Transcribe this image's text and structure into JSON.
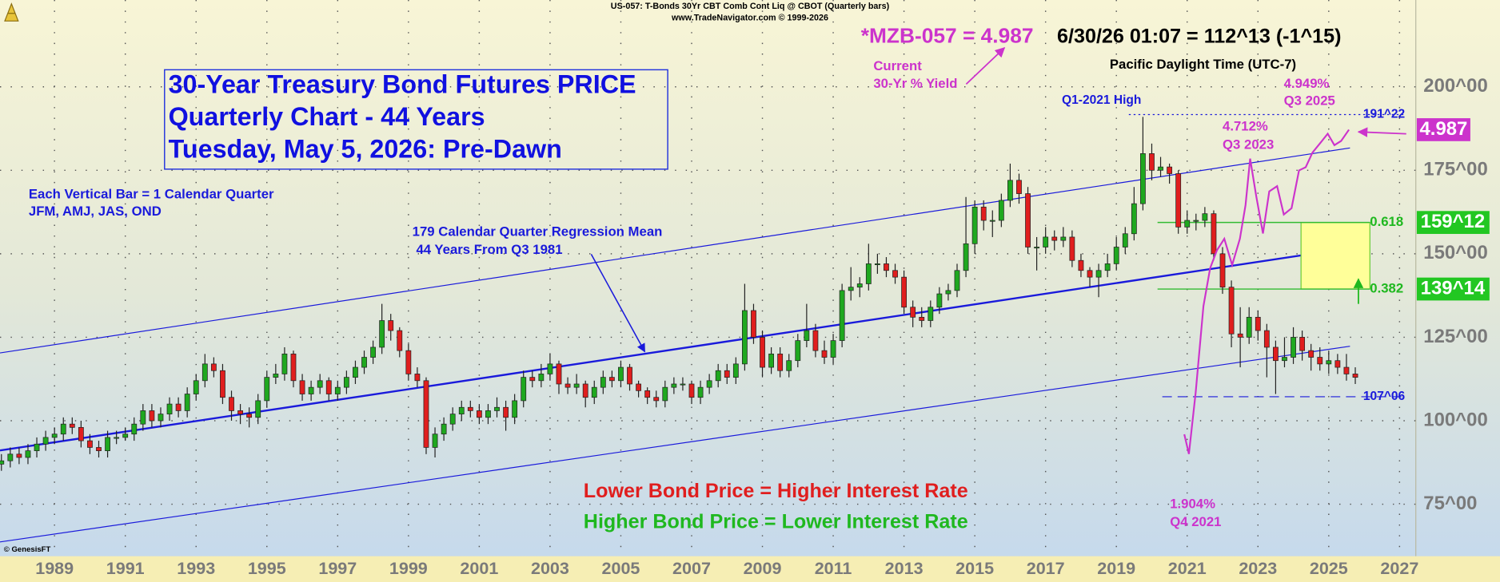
{
  "chart_data": {
    "type": "candlestick",
    "header": [
      "US-057:  T-Bonds 30Yr CBT Comb Cont Liq @ CBOT  (Quarterly bars)",
      "www.TradeNavigator.com © 1999-2026"
    ],
    "quote": [
      "*MZB-057 = 4.987",
      "6/30/26 01:07 = 112^13 (-1^15)"
    ],
    "title": [
      "30-Year Treasury Bond Futures PRICE",
      "Quarterly Chart - 44 Years",
      "Tuesday, May 5, 2026: Pre-Dawn"
    ],
    "x": [
      1987.5,
      1987.75,
      1988,
      1988.25,
      1988.5,
      1988.75,
      1989,
      1989.25,
      1989.5,
      1989.75,
      1990,
      1990.25,
      1990.5,
      1990.75,
      1991,
      1991.25,
      1991.5,
      1991.75,
      1992,
      1992.25,
      1992.5,
      1992.75,
      1993,
      1993.25,
      1993.5,
      1993.75,
      1994,
      1994.25,
      1994.5,
      1994.75,
      1995,
      1995.25,
      1995.5,
      1995.75,
      1996,
      1996.25,
      1996.5,
      1996.75,
      1997,
      1997.25,
      1997.5,
      1997.75,
      1998,
      1998.25,
      1998.5,
      1998.75,
      1999,
      1999.25,
      1999.5,
      1999.75,
      2000,
      2000.25,
      2000.5,
      2000.75,
      2001,
      2001.25,
      2001.5,
      2001.75,
      2002,
      2002.25,
      2002.5,
      2002.75,
      2003,
      2003.25,
      2003.5,
      2003.75,
      2004,
      2004.25,
      2004.5,
      2004.75,
      2005,
      2005.25,
      2005.5,
      2005.75,
      2006,
      2006.25,
      2006.5,
      2006.75,
      2007,
      2007.25,
      2007.5,
      2007.75,
      2008,
      2008.25,
      2008.5,
      2008.75,
      2009,
      2009.25,
      2009.5,
      2009.75,
      2010,
      2010.25,
      2010.5,
      2010.75,
      2011,
      2011.25,
      2011.5,
      2011.75,
      2012,
      2012.25,
      2012.5,
      2012.75,
      2013,
      2013.25,
      2013.5,
      2013.75,
      2014,
      2014.25,
      2014.5,
      2014.75,
      2015,
      2015.25,
      2015.5,
      2015.75,
      2016,
      2016.25,
      2016.5,
      2016.75,
      2017,
      2017.25,
      2017.5,
      2017.75,
      2018,
      2018.25,
      2018.5,
      2018.75,
      2019,
      2019.25,
      2019.5,
      2019.75,
      2020,
      2020.25,
      2020.5,
      2020.75,
      2021,
      2021.25,
      2021.5,
      2021.75,
      2022,
      2022.25,
      2022.5,
      2022.75,
      2023,
      2023.25,
      2023.5,
      2023.75,
      2024,
      2024.25,
      2024.5,
      2024.75,
      2025,
      2025.25,
      2025.5,
      2025.75
    ],
    "ohlc": [
      [
        87,
        90,
        85,
        88
      ],
      [
        88,
        92,
        86,
        90
      ],
      [
        90,
        92,
        87,
        89
      ],
      [
        89,
        93,
        87,
        91
      ],
      [
        91,
        95,
        89,
        93
      ],
      [
        93,
        97,
        91,
        95
      ],
      [
        95,
        98,
        93,
        96
      ],
      [
        96,
        101,
        94,
        99
      ],
      [
        99,
        101,
        96,
        98
      ],
      [
        98,
        100,
        92,
        94
      ],
      [
        94,
        96,
        90,
        92
      ],
      [
        92,
        94,
        89,
        91
      ],
      [
        91,
        97,
        89,
        95
      ],
      [
        95,
        97,
        93,
        95
      ],
      [
        95,
        98,
        94,
        96
      ],
      [
        96,
        101,
        94,
        99
      ],
      [
        99,
        105,
        97,
        103
      ],
      [
        103,
        105,
        98,
        100
      ],
      [
        100,
        104,
        98,
        102
      ],
      [
        102,
        107,
        100,
        105
      ],
      [
        105,
        107,
        101,
        103
      ],
      [
        103,
        110,
        101,
        108
      ],
      [
        108,
        114,
        106,
        112
      ],
      [
        112,
        120,
        110,
        117
      ],
      [
        117,
        119,
        113,
        115
      ],
      [
        115,
        117,
        105,
        107
      ],
      [
        107,
        109,
        100,
        103
      ],
      [
        103,
        105,
        99,
        102
      ],
      [
        102,
        104,
        98,
        101
      ],
      [
        101,
        108,
        99,
        106
      ],
      [
        106,
        115,
        104,
        113
      ],
      [
        113,
        117,
        111,
        114
      ],
      [
        114,
        122,
        112,
        120
      ],
      [
        120,
        121,
        110,
        112
      ],
      [
        112,
        114,
        106,
        108
      ],
      [
        108,
        112,
        106,
        110
      ],
      [
        110,
        114,
        108,
        112
      ],
      [
        112,
        113,
        106,
        108
      ],
      [
        108,
        112,
        106,
        110
      ],
      [
        110,
        115,
        108,
        113
      ],
      [
        113,
        118,
        111,
        116
      ],
      [
        116,
        121,
        114,
        119
      ],
      [
        119,
        124,
        117,
        122
      ],
      [
        122,
        135,
        120,
        130
      ],
      [
        130,
        132,
        124,
        127
      ],
      [
        127,
        128,
        119,
        121
      ],
      [
        121,
        123,
        112,
        114
      ],
      [
        114,
        116,
        110,
        112
      ],
      [
        112,
        113,
        90,
        92
      ],
      [
        92,
        98,
        89,
        96
      ],
      [
        96,
        101,
        94,
        99
      ],
      [
        99,
        104,
        97,
        102
      ],
      [
        102,
        106,
        100,
        104
      ],
      [
        104,
        106,
        101,
        103
      ],
      [
        103,
        105,
        99,
        101
      ],
      [
        101,
        105,
        99,
        103
      ],
      [
        103,
        107,
        101,
        104
      ],
      [
        104,
        106,
        97,
        101
      ],
      [
        101,
        108,
        99,
        106
      ],
      [
        106,
        115,
        104,
        113
      ],
      [
        113,
        115,
        110,
        112
      ],
      [
        112,
        117,
        110,
        114
      ],
      [
        114,
        120,
        112,
        117
      ],
      [
        117,
        118,
        108,
        111
      ],
      [
        111,
        113,
        108,
        110
      ],
      [
        110,
        114,
        108,
        111
      ],
      [
        111,
        112,
        104,
        107
      ],
      [
        107,
        112,
        105,
        110
      ],
      [
        110,
        115,
        108,
        113
      ],
      [
        113,
        115,
        110,
        112
      ],
      [
        112,
        118,
        110,
        116
      ],
      [
        116,
        117,
        109,
        111
      ],
      [
        111,
        112,
        107,
        109
      ],
      [
        109,
        110,
        105,
        107
      ],
      [
        107,
        109,
        104,
        106
      ],
      [
        106,
        112,
        104,
        110
      ],
      [
        110,
        113,
        108,
        111
      ],
      [
        111,
        113,
        109,
        111
      ],
      [
        111,
        112,
        105,
        107
      ],
      [
        107,
        112,
        105,
        110
      ],
      [
        110,
        114,
        108,
        112
      ],
      [
        112,
        117,
        110,
        115
      ],
      [
        115,
        117,
        111,
        113
      ],
      [
        113,
        119,
        111,
        117
      ],
      [
        117,
        141,
        115,
        133
      ],
      [
        133,
        135,
        123,
        125
      ],
      [
        125,
        127,
        113,
        116
      ],
      [
        116,
        122,
        114,
        120
      ],
      [
        120,
        122,
        113,
        115
      ],
      [
        115,
        120,
        113,
        118
      ],
      [
        118,
        126,
        116,
        124
      ],
      [
        124,
        135,
        122,
        127
      ],
      [
        127,
        129,
        119,
        121
      ],
      [
        121,
        124,
        117,
        119
      ],
      [
        119,
        126,
        117,
        124
      ],
      [
        124,
        141,
        122,
        139
      ],
      [
        139,
        146,
        136,
        140
      ],
      [
        140,
        143,
        137,
        141
      ],
      [
        141,
        153,
        139,
        147
      ],
      [
        147,
        150,
        144,
        147
      ],
      [
        147,
        149,
        143,
        145
      ],
      [
        145,
        147,
        141,
        143
      ],
      [
        143,
        145,
        132,
        134
      ],
      [
        134,
        136,
        128,
        131
      ],
      [
        131,
        134,
        128,
        130
      ],
      [
        130,
        136,
        128,
        134
      ],
      [
        134,
        140,
        132,
        138
      ],
      [
        138,
        141,
        136,
        139
      ],
      [
        139,
        147,
        137,
        145
      ],
      [
        145,
        167,
        143,
        153
      ],
      [
        153,
        166,
        150,
        164
      ],
      [
        164,
        166,
        157,
        160
      ],
      [
        160,
        163,
        155,
        160
      ],
      [
        160,
        168,
        158,
        166
      ],
      [
        166,
        177,
        164,
        172
      ],
      [
        172,
        174,
        165,
        168
      ],
      [
        168,
        170,
        150,
        152
      ],
      [
        152,
        155,
        145,
        152
      ],
      [
        152,
        158,
        150,
        155
      ],
      [
        155,
        157,
        151,
        154
      ],
      [
        154,
        158,
        152,
        155
      ],
      [
        155,
        157,
        146,
        148
      ],
      [
        148,
        150,
        143,
        145
      ],
      [
        145,
        146,
        140,
        143
      ],
      [
        143,
        147,
        137,
        145
      ],
      [
        145,
        150,
        143,
        147
      ],
      [
        147,
        155,
        145,
        152
      ],
      [
        152,
        158,
        150,
        156
      ],
      [
        156,
        170,
        154,
        165
      ],
      [
        165,
        191,
        163,
        180
      ],
      [
        180,
        183,
        172,
        175
      ],
      [
        175,
        179,
        173,
        176
      ],
      [
        176,
        177,
        171,
        174
      ],
      [
        174,
        175,
        156,
        158
      ],
      [
        158,
        163,
        156,
        160
      ],
      [
        160,
        162,
        157,
        160
      ],
      [
        160,
        164,
        158,
        162
      ],
      [
        162,
        163,
        148,
        150
      ],
      [
        150,
        152,
        138,
        140
      ],
      [
        140,
        142,
        122,
        126
      ],
      [
        126,
        134,
        116,
        125
      ],
      [
        125,
        134,
        123,
        131
      ],
      [
        131,
        133,
        124,
        127
      ],
      [
        127,
        129,
        113,
        122
      ],
      [
        122,
        124,
        108,
        118
      ],
      [
        118,
        125,
        116,
        119
      ],
      [
        119,
        128,
        117,
        125
      ],
      [
        125,
        127,
        118,
        121
      ],
      [
        121,
        123,
        115,
        119
      ],
      [
        119,
        122,
        115,
        117
      ],
      [
        117,
        121,
        114,
        118
      ],
      [
        118,
        120,
        114,
        116
      ],
      [
        116,
        120,
        112,
        114
      ],
      [
        114,
        116,
        111,
        113
      ]
    ],
    "up_color": "#1fa81f",
    "down_color": "#e01e1e",
    "channel": {
      "x": [
        1987.46,
        2025.6
      ],
      "mean": [
        91.1,
        151.7
      ],
      "upper": [
        120.3,
        181.7
      ],
      "lower": [
        63.7,
        122.3
      ],
      "color": "#1a1adb"
    },
    "levels": [
      {
        "value": 191.6875,
        "label": "191^22"
      },
      {
        "value": 107.1875,
        "label": "107^06"
      }
    ],
    "fib": [
      {
        "ratio": 0.618,
        "value": 159.375,
        "label": "159^12"
      },
      {
        "ratio": 0.382,
        "value": 139.4375,
        "label": "139^14"
      }
    ],
    "yield": {
      "axis": "y2",
      "color": "#cc33cc",
      "x": [
        2020.92,
        2021.05,
        2021.24,
        2021.46,
        2021.65,
        2021.84,
        2022.05,
        2022.27,
        2022.49,
        2022.65,
        2022.78,
        2022.95,
        2023.14,
        2023.32,
        2023.54,
        2023.73,
        2023.95,
        2024.16,
        2024.35,
        2024.54,
        2024.76,
        2024.97,
        2025.16,
        2025.35,
        2025.57
      ],
      "values": [
        2.09,
        1.904,
        2.49,
        3.31,
        3.67,
        3.84,
        3.95,
        3.7,
        3.95,
        4.27,
        4.712,
        4.36,
        4.0,
        4.4,
        4.45,
        4.18,
        4.24,
        4.6,
        4.63,
        4.77,
        4.86,
        4.949,
        4.84,
        4.88,
        4.987
      ],
      "value_labels": [
        null,
        "1.904%",
        null,
        null,
        null,
        null,
        null,
        null,
        null,
        null,
        "4.712%",
        null,
        null,
        null,
        null,
        null,
        null,
        null,
        null,
        null,
        null,
        "4.949%",
        null,
        null,
        "4.987"
      ]
    },
    "xlim": [
      1987.46,
      2027.46
    ],
    "xticks": [
      1989,
      1991,
      1993,
      1995,
      1997,
      1999,
      2001,
      2003,
      2005,
      2007,
      2009,
      2011,
      2013,
      2015,
      2017,
      2019,
      2021,
      2023,
      2025,
      2027
    ],
    "ylim": [
      60,
      226
    ],
    "yticks": [
      {
        "value": 75,
        "label": "75^00"
      },
      {
        "value": 100,
        "label": "100^00"
      },
      {
        "value": 125,
        "label": "125^00"
      },
      {
        "value": 150,
        "label": "150^00"
      },
      {
        "value": 175,
        "label": "175^00"
      },
      {
        "value": 200,
        "label": "200^00"
      }
    ],
    "y2lim": [
      0.95,
      6.22
    ],
    "grid": true,
    "annotations": [
      {
        "text": "Each Vertical Bar = 1 Calendar Quarter",
        "color": "#1a1adb"
      },
      {
        "text": "JFM, AMJ, JAS, OND",
        "color": "#1a1adb"
      },
      {
        "text": "179 Calendar Quarter Regression Mean",
        "color": "#1a1adb"
      },
      {
        "text": "44 Years From Q3 1981",
        "color": "#1a1adb"
      },
      {
        "text": "Q1-2021 High",
        "color": "#1a1adb"
      },
      {
        "text": "Current",
        "color": "#cc33cc"
      },
      {
        "text": "30-Yr % Yield",
        "color": "#cc33cc"
      },
      {
        "text": "Q3 2023",
        "color": "#cc33cc"
      },
      {
        "text": "Q3 2025",
        "color": "#cc33cc"
      },
      {
        "text": "Q4 2021",
        "color": "#cc33cc"
      },
      {
        "text": "Pacific Daylight Time (UTC-7)",
        "color": "#000000"
      },
      {
        "text": "Lower Bond Price = Higher Interest Rate",
        "color": "#e01e1e"
      },
      {
        "text": "Higher Bond Price = Lower Interest Rate",
        "color": "#1fb81f"
      },
      {
        "text": "© GenesisFT",
        "color": "#000000"
      }
    ]
  }
}
